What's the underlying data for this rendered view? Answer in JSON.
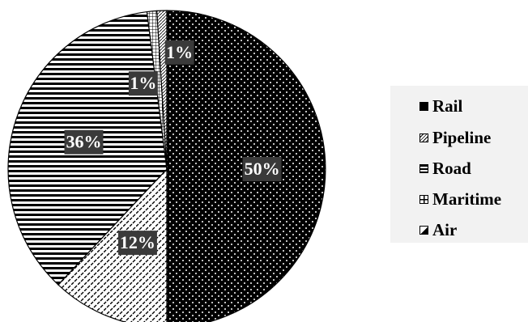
{
  "chart_data": {
    "type": "pie",
    "start_angle_deg": 0,
    "direction": "clockwise",
    "slices": [
      {
        "label": "Rail",
        "value": 50,
        "display": "50%",
        "pattern": "dots"
      },
      {
        "label": "Pipeline",
        "value": 12,
        "display": "12%",
        "pattern": "diagonal-dashes"
      },
      {
        "label": "Road",
        "value": 36,
        "display": "36%",
        "pattern": "horizontal-stripes"
      },
      {
        "label": "Maritime",
        "value": 1,
        "display": "1%",
        "pattern": "grid"
      },
      {
        "label": "Air",
        "value": 1,
        "display": "1%",
        "pattern": "hatch"
      }
    ],
    "legend": {
      "placement": "right",
      "entries": [
        "Rail",
        "Pipeline",
        "Road",
        "Maritime",
        "Air"
      ]
    },
    "title": ""
  }
}
